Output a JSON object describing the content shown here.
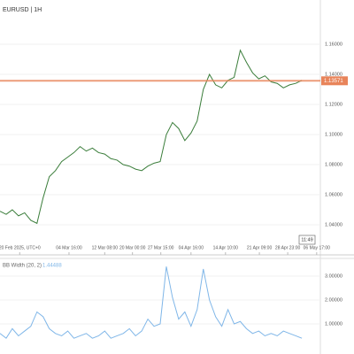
{
  "chart_data": [
    {
      "type": "line",
      "title": "EURUSD | 1H",
      "current_value": 1.13571,
      "current_color": "#e8845a",
      "time_label": "11:49",
      "x": [
        0,
        1,
        2,
        3,
        4,
        5,
        6,
        7,
        8,
        9,
        10,
        11,
        12,
        13,
        14,
        15,
        16,
        17,
        18,
        19,
        20,
        21,
        22,
        23,
        24,
        25,
        26,
        27,
        28,
        29,
        30,
        31,
        32,
        33,
        34,
        35,
        36,
        37,
        38,
        39,
        40,
        41,
        42,
        43,
        44,
        45,
        46,
        47,
        48,
        49
      ],
      "series": [
        {
          "name": "EURUSD",
          "color": "#3a7d3a",
          "values": [
            1.049,
            1.047,
            1.05,
            1.046,
            1.048,
            1.043,
            1.041,
            1.058,
            1.072,
            1.076,
            1.082,
            1.085,
            1.088,
            1.092,
            1.089,
            1.091,
            1.088,
            1.087,
            1.084,
            1.083,
            1.08,
            1.079,
            1.077,
            1.076,
            1.079,
            1.081,
            1.082,
            1.1,
            1.108,
            1.104,
            1.096,
            1.101,
            1.109,
            1.13,
            1.14,
            1.133,
            1.131,
            1.136,
            1.138,
            1.156,
            1.148,
            1.141,
            1.137,
            1.139,
            1.135,
            1.134,
            1.131,
            1.133,
            1.134,
            1.136
          ]
        }
      ],
      "xlim": [
        0,
        52
      ],
      "ylim": [
        1.0218,
        1.1894
      ],
      "xticks": [
        {
          "value": 3.2,
          "label": "20 Feb 2025, UTC+0"
        },
        {
          "value": 11.2,
          "label": "04 Mar 16:00"
        },
        {
          "value": 17,
          "label": "12 Mar 08:00"
        },
        {
          "value": 21.5,
          "label": "20 Mar 00:00"
        },
        {
          "value": 26.1,
          "label": "27 Mar 15:00"
        },
        {
          "value": 31,
          "label": "04 Apr 16:00"
        },
        {
          "value": 36.6,
          "label": "14 Apr 10:00"
        },
        {
          "value": 42.1,
          "label": "21 Apr 09:00"
        },
        {
          "value": 46.7,
          "label": "28 Apr 23:00"
        },
        {
          "value": 51.4,
          "label": "06 May 17:00"
        }
      ],
      "yticks": [
        {
          "value": 1.04,
          "label": "1.04000"
        },
        {
          "value": 1.06,
          "label": "1.06000"
        },
        {
          "value": 1.08,
          "label": "1.08000"
        },
        {
          "value": 1.1,
          "label": "1.10000"
        },
        {
          "value": 1.12,
          "label": "1.12000"
        },
        {
          "value": 1.14,
          "label": "1.14000"
        },
        {
          "value": 1.16,
          "label": "1.16000"
        }
      ]
    },
    {
      "type": "line",
      "title": "BB Width (20, 2)",
      "current_value": 1.44488,
      "x": [
        0,
        1,
        2,
        3,
        4,
        5,
        6,
        7,
        8,
        9,
        10,
        11,
        12,
        13,
        14,
        15,
        16,
        17,
        18,
        19,
        20,
        21,
        22,
        23,
        24,
        25,
        26,
        27,
        28,
        29,
        30,
        31,
        32,
        33,
        34,
        35,
        36,
        37,
        38,
        39,
        40,
        41,
        42,
        43,
        44,
        45,
        46,
        47,
        48,
        49
      ],
      "series": [
        {
          "name": "BB Width",
          "color": "#7fb6e8",
          "values": [
            0.6,
            0.4,
            0.8,
            0.5,
            0.7,
            0.9,
            1.5,
            1.3,
            0.8,
            0.6,
            0.5,
            0.7,
            0.4,
            0.5,
            0.6,
            0.4,
            0.5,
            0.7,
            0.4,
            0.5,
            0.6,
            0.8,
            0.5,
            0.7,
            1.2,
            0.9,
            1.0,
            3.4,
            2.1,
            1.2,
            1.5,
            0.9,
            1.6,
            3.3,
            2.0,
            1.3,
            0.9,
            1.6,
            1.0,
            1.1,
            0.8,
            0.6,
            0.7,
            0.5,
            0.6,
            0.5,
            0.7,
            0.6,
            0.5,
            0.4
          ]
        }
      ],
      "xlim": [
        0,
        52
      ],
      "ylim": [
        0.11,
        3.63
      ],
      "yticks": [
        {
          "value": 1,
          "label": "1.00000"
        },
        {
          "value": 2,
          "label": "2.00000"
        },
        {
          "value": 3,
          "label": "3.00000"
        }
      ]
    }
  ]
}
